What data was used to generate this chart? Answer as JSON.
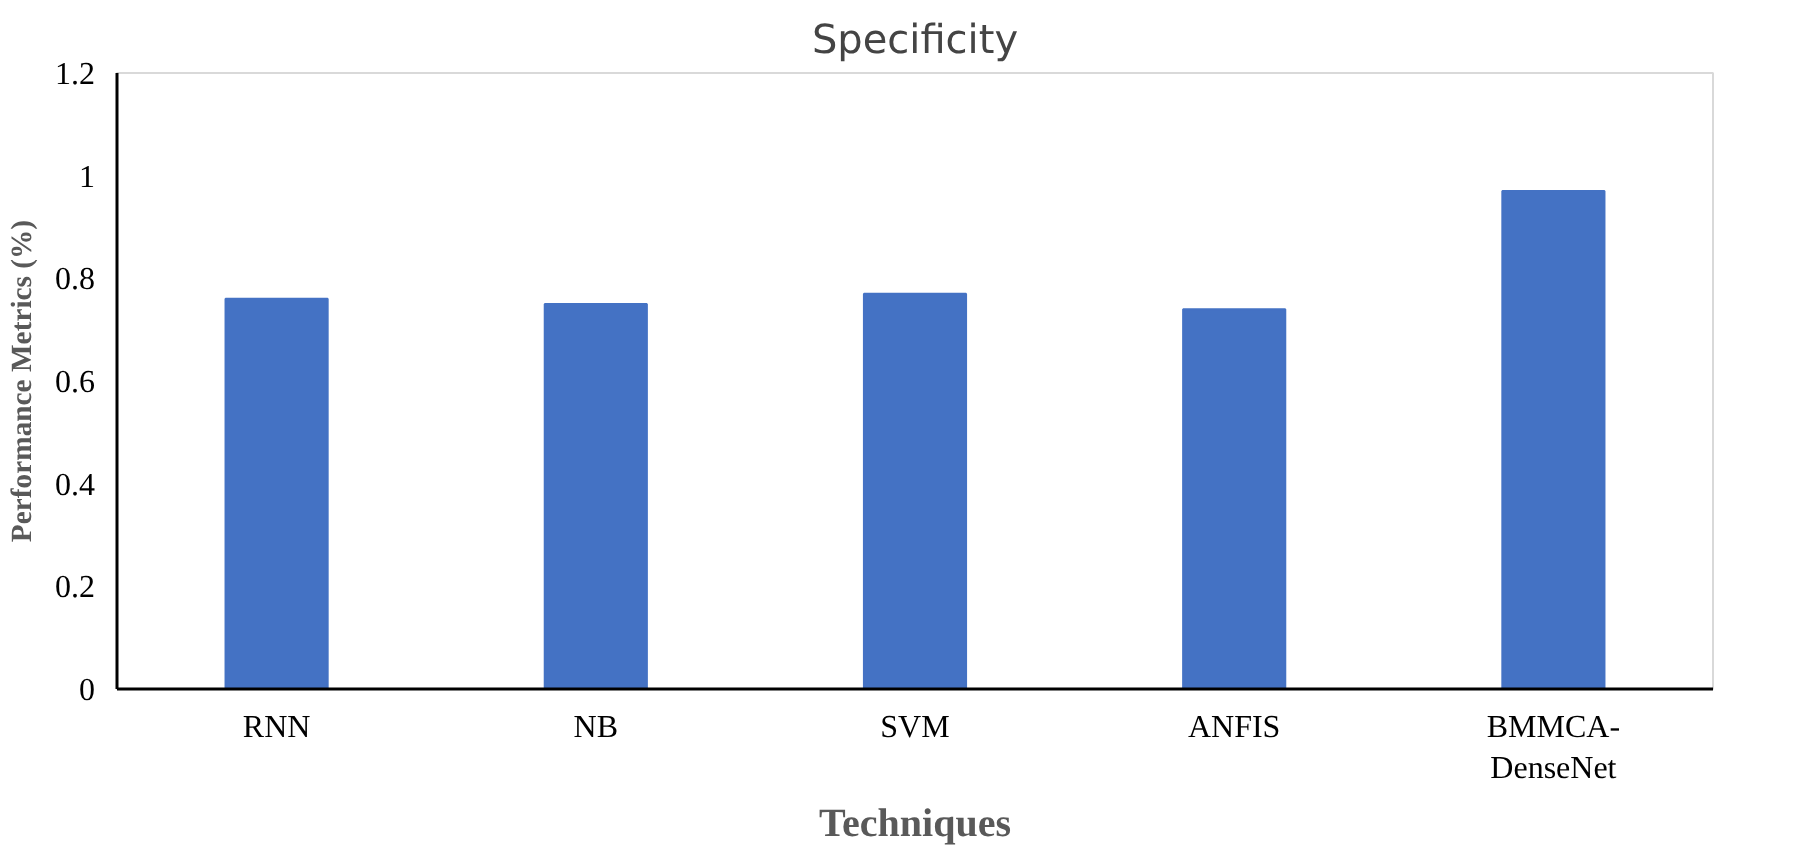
{
  "chart_data": {
    "type": "bar",
    "title": "Specificity",
    "xlabel": "Techniques",
    "ylabel": "Performance Metrics (%)",
    "categories": [
      "RNN",
      "NB",
      "SVM",
      "ANFIS",
      "BMMCA-DenseNet"
    ],
    "values": [
      0.76,
      0.75,
      0.77,
      0.74,
      0.97
    ],
    "color": "#4472c4",
    "ylim": [
      0,
      1.2
    ],
    "yticks": [
      0,
      0.2,
      0.4,
      0.6,
      0.8,
      1,
      1.2
    ],
    "grid": false
  }
}
